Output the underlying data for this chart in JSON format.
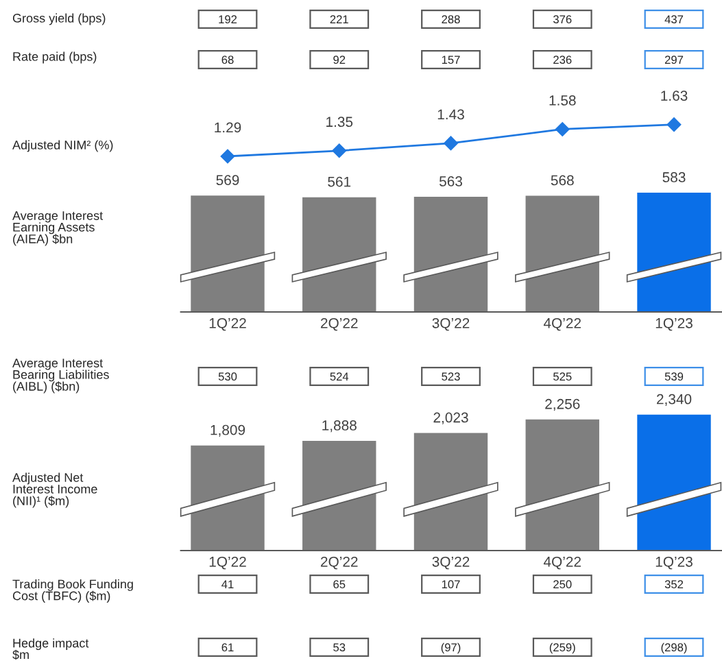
{
  "chart_data": [
    {
      "type": "other",
      "title": "Gross yield (bps)",
      "categories": [
        null,
        null,
        null,
        null,
        null
      ],
      "values": [
        192,
        221,
        288,
        376,
        437
      ],
      "data_labels": true,
      "colors": [
        "#595959",
        "#595959",
        "#595959",
        "#595959",
        "#3d8fe8"
      ]
    },
    {
      "type": "other",
      "title": "Rate paid (bps)",
      "categories": [
        null,
        null,
        null,
        null,
        null
      ],
      "values": [
        68,
        92,
        157,
        236,
        297
      ],
      "data_labels": true,
      "colors": [
        "#595959",
        "#595959",
        "#595959",
        "#595959",
        "#3d8fe8"
      ]
    },
    {
      "type": "line",
      "title": "Adjusted NIM² (%)",
      "categories": [
        null,
        null,
        null,
        null,
        null
      ],
      "values": [
        1.29,
        1.35,
        1.43,
        1.58,
        1.63
      ],
      "data_labels": true,
      "color": "#1f78e0",
      "marker": "diamond",
      "tick_labels": false,
      "legend": false
    },
    {
      "type": "bar",
      "ylabel": "Average Interest\nEarning Assets\n(AIEA) $bn",
      "categories": [
        "1Q’22",
        "2Q’22",
        "3Q’22",
        "4Q’22",
        "1Q’23"
      ],
      "values": [
        569,
        561,
        563,
        568,
        583
      ],
      "data_labels": true,
      "colors": [
        "#7f7f7f",
        "#7f7f7f",
        "#7f7f7f",
        "#7f7f7f",
        "#0a6fe8"
      ],
      "tick_labels": "x",
      "legend": false
    },
    {
      "type": "other",
      "title": "Average Interest\nBearing Liabilities\n(AIBL) ($bn)",
      "categories": [
        null,
        null,
        null,
        null,
        null
      ],
      "values": [
        530,
        524,
        523,
        525,
        539
      ],
      "data_labels": true,
      "colors": [
        "#595959",
        "#595959",
        "#595959",
        "#595959",
        "#3d8fe8"
      ]
    },
    {
      "type": "bar",
      "ylabel": "Adjusted Net\nInterest Income\n(NII)¹ ($m)",
      "categories": [
        "1Q’22",
        "2Q’22",
        "3Q’22",
        "4Q’22",
        "1Q’23"
      ],
      "values": [
        1809,
        1888,
        2023,
        2256,
        2340
      ],
      "value_labels": [
        "1,809",
        "1,888",
        "2,023",
        "2,256",
        "2,340"
      ],
      "colors": [
        "#7f7f7f",
        "#7f7f7f",
        "#7f7f7f",
        "#7f7f7f",
        "#0a6fe8"
      ],
      "tick_labels": "x",
      "legend": false
    },
    {
      "type": "other",
      "title": "Trading Book Funding\nCost (TBFC) ($m)",
      "categories": [
        null,
        null,
        null,
        null,
        null
      ],
      "values": [
        41,
        65,
        107,
        250,
        352
      ],
      "data_labels": true,
      "colors": [
        "#595959",
        "#595959",
        "#595959",
        "#595959",
        "#3d8fe8"
      ]
    },
    {
      "type": "other",
      "title": "Hedge impact\n$m",
      "categories": [
        null,
        null,
        null,
        null,
        null
      ],
      "values": [
        61,
        53,
        -97,
        -259,
        -298
      ],
      "value_labels": [
        "61",
        "53",
        "(97)",
        "(259)",
        "(298)"
      ],
      "colors": [
        "#595959",
        "#595959",
        "#595959",
        "#595959",
        "#3d8fe8"
      ]
    }
  ]
}
